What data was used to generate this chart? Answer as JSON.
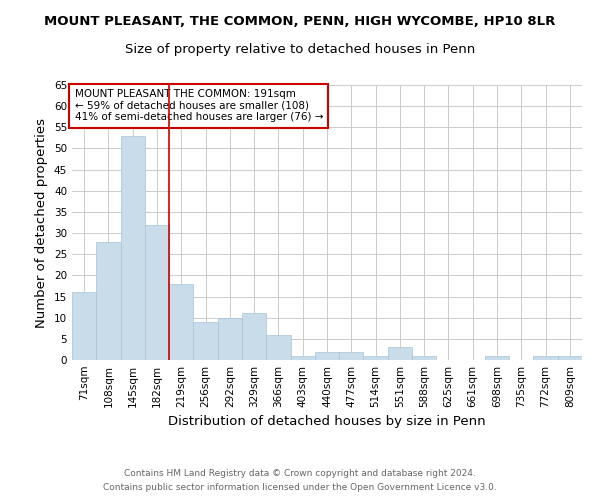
{
  "title1": "MOUNT PLEASANT, THE COMMON, PENN, HIGH WYCOMBE, HP10 8LR",
  "title2": "Size of property relative to detached houses in Penn",
  "xlabel": "Distribution of detached houses by size in Penn",
  "ylabel": "Number of detached properties",
  "footnote1": "Contains HM Land Registry data © Crown copyright and database right 2024.",
  "footnote2": "Contains public sector information licensed under the Open Government Licence v3.0.",
  "annotation_line1": "MOUNT PLEASANT THE COMMON: 191sqm",
  "annotation_line2": "← 59% of detached houses are smaller (108)",
  "annotation_line3": "41% of semi-detached houses are larger (76) →",
  "bar_color": "#c9dcea",
  "bar_edge_color": "#a8c4d8",
  "vline_color": "#cc0000",
  "vline_position": 3.5,
  "categories": [
    "71sqm",
    "108sqm",
    "145sqm",
    "182sqm",
    "219sqm",
    "256sqm",
    "292sqm",
    "329sqm",
    "366sqm",
    "403sqm",
    "440sqm",
    "477sqm",
    "514sqm",
    "551sqm",
    "588sqm",
    "625sqm",
    "661sqm",
    "698sqm",
    "735sqm",
    "772sqm",
    "809sqm"
  ],
  "values": [
    16,
    28,
    53,
    32,
    18,
    9,
    10,
    11,
    6,
    1,
    2,
    2,
    1,
    3,
    1,
    0,
    0,
    1,
    0,
    1,
    1
  ],
  "ylim": [
    0,
    65
  ],
  "yticks": [
    0,
    5,
    10,
    15,
    20,
    25,
    30,
    35,
    40,
    45,
    50,
    55,
    60,
    65
  ],
  "background_color": "#ffffff",
  "grid_color": "#cccccc",
  "title_fontsize": 9.5,
  "subtitle_fontsize": 9.5,
  "axis_label_fontsize": 9.5,
  "tick_fontsize": 7.5,
  "annotation_fontsize": 7.5,
  "footnote_fontsize": 6.5
}
